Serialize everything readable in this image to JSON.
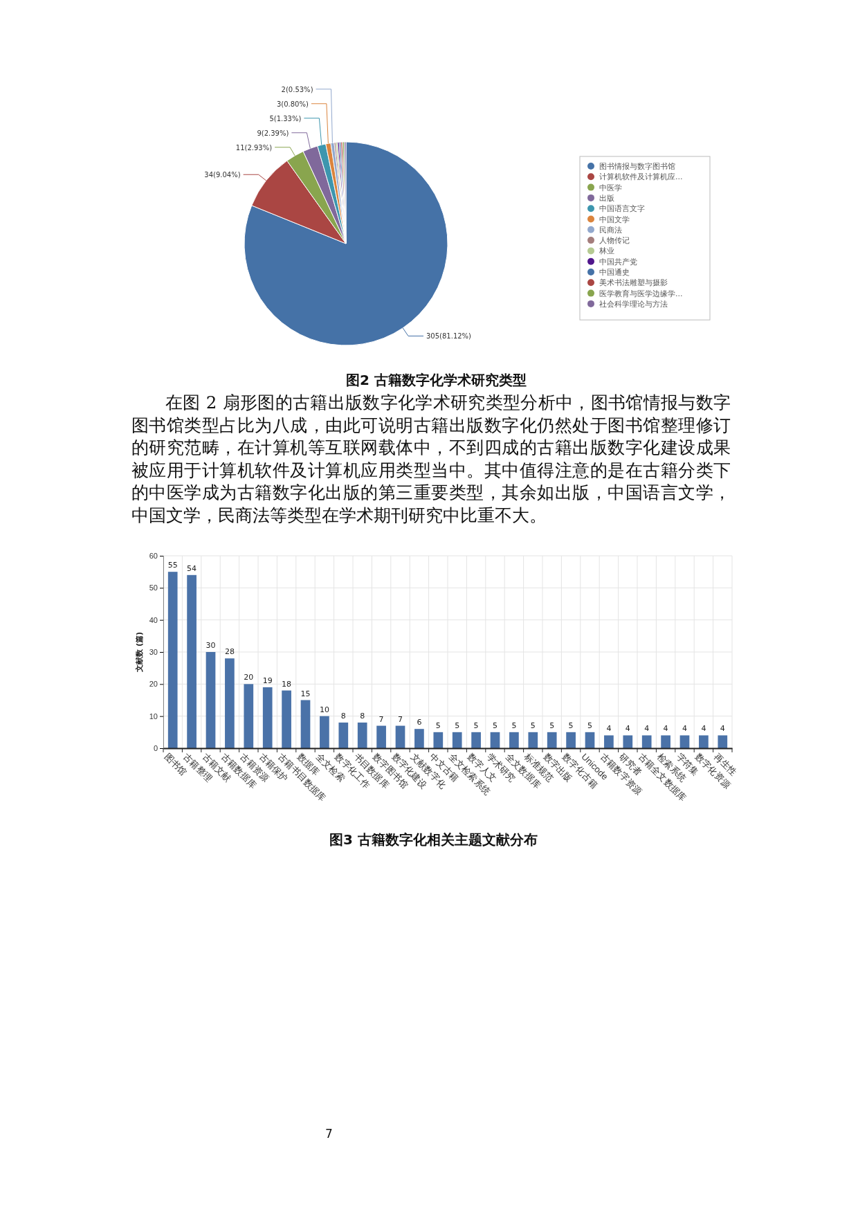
{
  "chart_data": [
    {
      "type": "pie",
      "title": "图2 古籍数字化学术研究类型",
      "categories": [
        "图书情报与数字图书馆",
        "计算机软件及计算机应...",
        "中医学",
        "出版",
        "中国语言文字",
        "中国文学",
        "民商法",
        "人物传记",
        "林业",
        "中国共产党",
        "中国通史",
        "美术书法雕塑与摄影",
        "医学教育与医学边缘学...",
        "社会科学理论与方法"
      ],
      "values": [
        305,
        34,
        11,
        9,
        5,
        3,
        2,
        1,
        1,
        1,
        1,
        1,
        1,
        1
      ],
      "value_labels": [
        "305(81.12%)",
        "34(9.04%)",
        "11(2.93%)",
        "9(2.39%)",
        "5(1.33%)",
        "3(0.80%)",
        "2(0.53%)",
        null,
        null,
        null,
        null,
        null,
        null,
        null
      ],
      "colors": [
        "#4572a7",
        "#aa4643",
        "#89a54e",
        "#80699b",
        "#3d96ae",
        "#db843d",
        "#92a8cd",
        "#a47d7c",
        "#b5ca92",
        "#50168c",
        "#4572a7",
        "#aa4643",
        "#89a54e",
        "#80699b"
      ],
      "legend": "right",
      "annotations": [
        "在图 2 扇形图的古籍出版数字化学术研究类型分析中，图书馆情报与数字图书馆类型占比为八成，由此可说明古籍出版数字化仍然处于图书馆整理修订的研究范畴，在计算机等互联网载体中，不到四成的古籍出版数字化建设成果被应用于计算机软件及计算机应用类型当中。其中值得注意的是在古籍分类下的中医学成为古籍数字化出版的第三重要类型，其余如出版，中国语言文学，中国文学，民商法等类型在学术期刊研究中比重不大。"
      ]
    },
    {
      "type": "bar",
      "title": "图3 古籍数字化相关主题文献分布",
      "ylabel": "文献数 (篇)",
      "categories": [
        "图书馆",
        "古籍整理",
        "古籍文献",
        "古籍数据库",
        "古籍资源",
        "古籍保护",
        "古籍书目数据库",
        "数据库",
        "全文检索",
        "数字化工作",
        "书目数据库",
        "数字图书馆",
        "数字化建设",
        "文献数字化",
        "中文古籍",
        "全文检索系统",
        "数字人文",
        "学术研究",
        "全文数据库",
        "标准规范",
        "数字出版",
        "数字化古籍",
        "Unicode",
        "古籍数字资源",
        "研究者",
        "古籍全文数据库",
        "检索系统",
        "字符集",
        "数字化资源",
        "再生性"
      ],
      "values": [
        55,
        54,
        30,
        28,
        20,
        19,
        18,
        15,
        10,
        8,
        8,
        7,
        7,
        6,
        5,
        5,
        5,
        5,
        5,
        5,
        5,
        5,
        5,
        4,
        4,
        4,
        4,
        4,
        4,
        4
      ],
      "color": "#4a72a8",
      "ylim": [
        0,
        60
      ],
      "yticks": [
        0,
        10,
        20,
        30,
        40,
        50,
        60
      ],
      "grid": true,
      "data_labels": true,
      "annotations": [
        "7"
      ]
    }
  ]
}
